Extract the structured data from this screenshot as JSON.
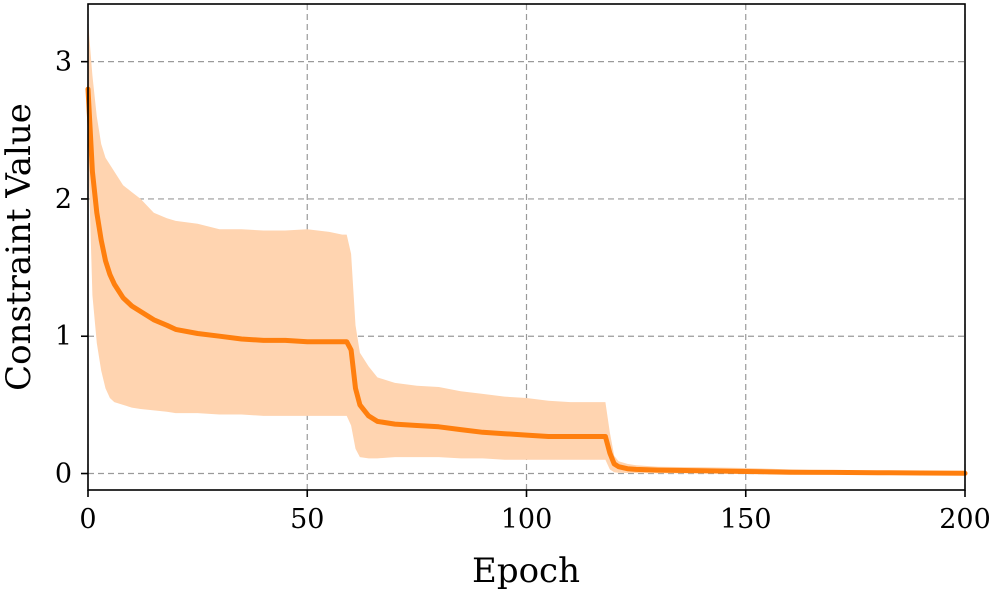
{
  "chart_data": {
    "type": "line",
    "title": "",
    "xlabel": "Epoch",
    "ylabel": "Constraint Value",
    "xlim": [
      0,
      200
    ],
    "ylim": [
      -0.12,
      3.42
    ],
    "xticks": [
      0,
      50,
      100,
      150,
      200
    ],
    "yticks": [
      0,
      1,
      2,
      3
    ],
    "xtick_labels": [
      "0",
      "50",
      "100",
      "150",
      "200"
    ],
    "ytick_labels": [
      "0",
      "1",
      "2",
      "3"
    ],
    "grid": true,
    "legend": "none",
    "colors": {
      "line": "#ff7f0e",
      "band": "#ffd4b0"
    },
    "series": [
      {
        "x": [
          0,
          1,
          2,
          3,
          4,
          5,
          6,
          8,
          10,
          12,
          15,
          18,
          20,
          25,
          30,
          35,
          40,
          45,
          50,
          55,
          58,
          59,
          60,
          61,
          62,
          64,
          66,
          70,
          75,
          80,
          85,
          90,
          95,
          100,
          105,
          110,
          115,
          118,
          119,
          120,
          121,
          123,
          125,
          130,
          140,
          150,
          160,
          170,
          180,
          190,
          200
        ],
        "y": [
          2.8,
          2.2,
          1.9,
          1.7,
          1.55,
          1.45,
          1.38,
          1.28,
          1.22,
          1.18,
          1.12,
          1.08,
          1.05,
          1.02,
          1.0,
          0.98,
          0.97,
          0.97,
          0.96,
          0.96,
          0.96,
          0.96,
          0.9,
          0.62,
          0.5,
          0.42,
          0.38,
          0.36,
          0.35,
          0.34,
          0.32,
          0.3,
          0.29,
          0.28,
          0.27,
          0.27,
          0.27,
          0.27,
          0.15,
          0.07,
          0.05,
          0.035,
          0.03,
          0.025,
          0.02,
          0.015,
          0.01,
          0.008,
          0.006,
          0.004,
          0.002
        ],
        "lower": [
          2.4,
          1.3,
          0.95,
          0.75,
          0.62,
          0.55,
          0.52,
          0.5,
          0.48,
          0.47,
          0.46,
          0.45,
          0.44,
          0.44,
          0.43,
          0.43,
          0.42,
          0.42,
          0.42,
          0.42,
          0.42,
          0.42,
          0.35,
          0.18,
          0.12,
          0.11,
          0.11,
          0.12,
          0.12,
          0.12,
          0.11,
          0.11,
          0.1,
          0.1,
          0.1,
          0.1,
          0.1,
          0.1,
          0.03,
          0.01,
          0.005,
          0.004,
          0.003,
          0.002,
          0.001,
          0.0,
          0.0,
          0.0,
          0.0,
          0.0,
          0.0
        ],
        "upper": [
          3.3,
          2.9,
          2.6,
          2.4,
          2.3,
          2.25,
          2.2,
          2.1,
          2.05,
          2.0,
          1.9,
          1.86,
          1.84,
          1.82,
          1.78,
          1.78,
          1.77,
          1.77,
          1.78,
          1.76,
          1.74,
          1.74,
          1.6,
          1.08,
          0.88,
          0.78,
          0.7,
          0.66,
          0.64,
          0.63,
          0.6,
          0.58,
          0.56,
          0.55,
          0.53,
          0.52,
          0.52,
          0.52,
          0.3,
          0.13,
          0.09,
          0.07,
          0.06,
          0.05,
          0.045,
          0.04,
          0.03,
          0.02,
          0.015,
          0.01,
          0.008
        ]
      }
    ]
  }
}
